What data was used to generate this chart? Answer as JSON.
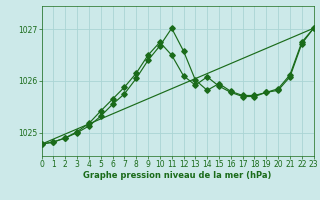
{
  "xlabel": "Graphe pression niveau de la mer (hPa)",
  "background_color": "#cce9e9",
  "grid_color": "#aad4d4",
  "line_color": "#1a6b1a",
  "ylim": [
    1024.55,
    1027.45
  ],
  "xlim": [
    0,
    23
  ],
  "yticks": [
    1025,
    1026,
    1027
  ],
  "xticks": [
    0,
    1,
    2,
    3,
    4,
    5,
    6,
    7,
    8,
    9,
    10,
    11,
    12,
    13,
    14,
    15,
    16,
    17,
    18,
    19,
    20,
    21,
    22,
    23
  ],
  "line1_x": [
    0,
    23
  ],
  "line1_y": [
    1024.78,
    1027.02
  ],
  "line2_x": [
    0,
    1,
    2,
    3,
    4,
    5,
    6,
    7,
    8,
    9,
    10,
    11,
    12,
    13,
    14,
    15,
    16,
    17,
    18,
    19,
    20,
    21,
    22,
    23
  ],
  "line2_y": [
    1024.78,
    1024.82,
    1024.9,
    1025.0,
    1025.13,
    1025.32,
    1025.55,
    1025.75,
    1026.05,
    1026.4,
    1026.68,
    1027.02,
    1026.58,
    1026.02,
    1025.82,
    1025.95,
    1025.8,
    1025.72,
    1025.72,
    1025.78,
    1025.82,
    1026.08,
    1026.72,
    1027.02
  ],
  "line3_x": [
    0,
    1,
    2,
    3,
    4,
    5,
    6,
    7,
    8,
    9,
    10,
    11,
    12,
    13,
    14,
    15,
    16,
    17,
    18,
    19,
    20,
    21,
    22,
    23
  ],
  "line3_y": [
    1024.78,
    1024.82,
    1024.9,
    1025.02,
    1025.18,
    1025.42,
    1025.65,
    1025.88,
    1026.15,
    1026.5,
    1026.75,
    1026.5,
    1026.1,
    1025.92,
    1026.08,
    1025.9,
    1025.78,
    1025.7,
    1025.7,
    1025.78,
    1025.85,
    1026.12,
    1026.75,
    1027.02
  ],
  "xlabel_fontsize": 6,
  "tick_fontsize": 5.5
}
